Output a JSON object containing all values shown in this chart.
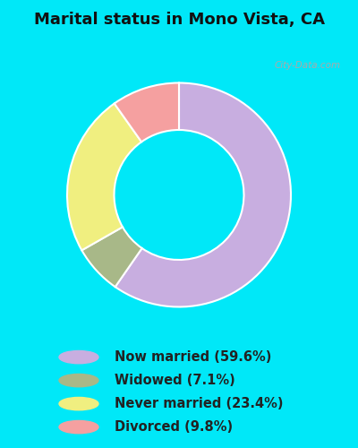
{
  "title": "Marital status in Mono Vista, CA",
  "categories": [
    "Now married (59.6%)",
    "Widowed (7.1%)",
    "Never married (23.4%)",
    "Divorced (9.8%)"
  ],
  "values": [
    59.6,
    7.1,
    23.4,
    9.8
  ],
  "colors": [
    "#c8aee0",
    "#a8b888",
    "#f0ef80",
    "#f5a0a0"
  ],
  "bg_cyan": "#00e8f8",
  "bg_chart": "#d0ede0",
  "donut_hole_ratio": 0.58,
  "start_angle": 90,
  "title_fontsize": 13,
  "legend_fontsize": 10.5,
  "watermark": "City-Data.com"
}
